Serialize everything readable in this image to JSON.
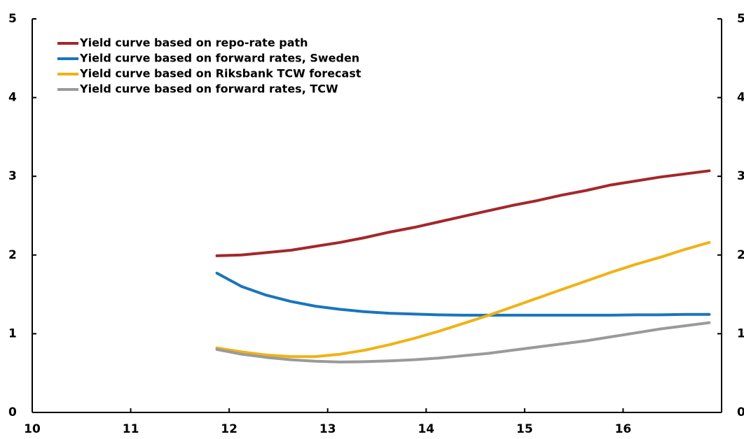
{
  "chart_data": {
    "type": "line",
    "x": [
      11.875,
      12.125,
      12.375,
      12.625,
      12.875,
      13.125,
      13.375,
      13.625,
      13.875,
      14.125,
      14.375,
      14.625,
      14.875,
      15.125,
      15.375,
      15.625,
      15.875,
      16.125,
      16.375,
      16.625,
      16.875
    ],
    "series": [
      {
        "name": "Yield curve based on repo-rate path",
        "color": "#a4272b",
        "values": [
          1.99,
          2.0,
          2.03,
          2.06,
          2.11,
          2.16,
          2.22,
          2.29,
          2.35,
          2.42,
          2.49,
          2.56,
          2.63,
          2.69,
          2.76,
          2.82,
          2.89,
          2.94,
          2.99,
          3.03,
          3.07
        ]
      },
      {
        "name": "Yield curve based on forward rates, Sweden",
        "color": "#1a75bc",
        "values": [
          1.77,
          1.6,
          1.49,
          1.41,
          1.35,
          1.31,
          1.28,
          1.26,
          1.25,
          1.24,
          1.235,
          1.235,
          1.235,
          1.235,
          1.235,
          1.235,
          1.235,
          1.24,
          1.24,
          1.245,
          1.245
        ]
      },
      {
        "name": "Yield curve based on Riksbank TCW forecast",
        "color": "#f0b215",
        "values": [
          0.82,
          0.77,
          0.73,
          0.71,
          0.71,
          0.74,
          0.79,
          0.86,
          0.94,
          1.03,
          1.13,
          1.23,
          1.34,
          1.45,
          1.56,
          1.67,
          1.78,
          1.88,
          1.97,
          2.07,
          2.16
        ]
      },
      {
        "name": "Yield curve based on forward rates, TCW",
        "color": "#9a9a9a",
        "values": [
          0.8,
          0.74,
          0.7,
          0.67,
          0.65,
          0.64,
          0.645,
          0.655,
          0.67,
          0.69,
          0.72,
          0.75,
          0.79,
          0.83,
          0.87,
          0.91,
          0.96,
          1.01,
          1.06,
          1.1,
          1.14
        ]
      }
    ],
    "xlim": [
      10,
      17
    ],
    "xticks": [
      10,
      11,
      12,
      13,
      14,
      15,
      16
    ],
    "ylim": [
      0,
      5
    ],
    "yticks": [
      0,
      1,
      2,
      3,
      4,
      5
    ],
    "y2lim": [
      0,
      5
    ],
    "y2ticks": [
      0,
      1,
      2,
      3,
      4,
      5
    ],
    "grid": false,
    "legend": "upper left"
  }
}
